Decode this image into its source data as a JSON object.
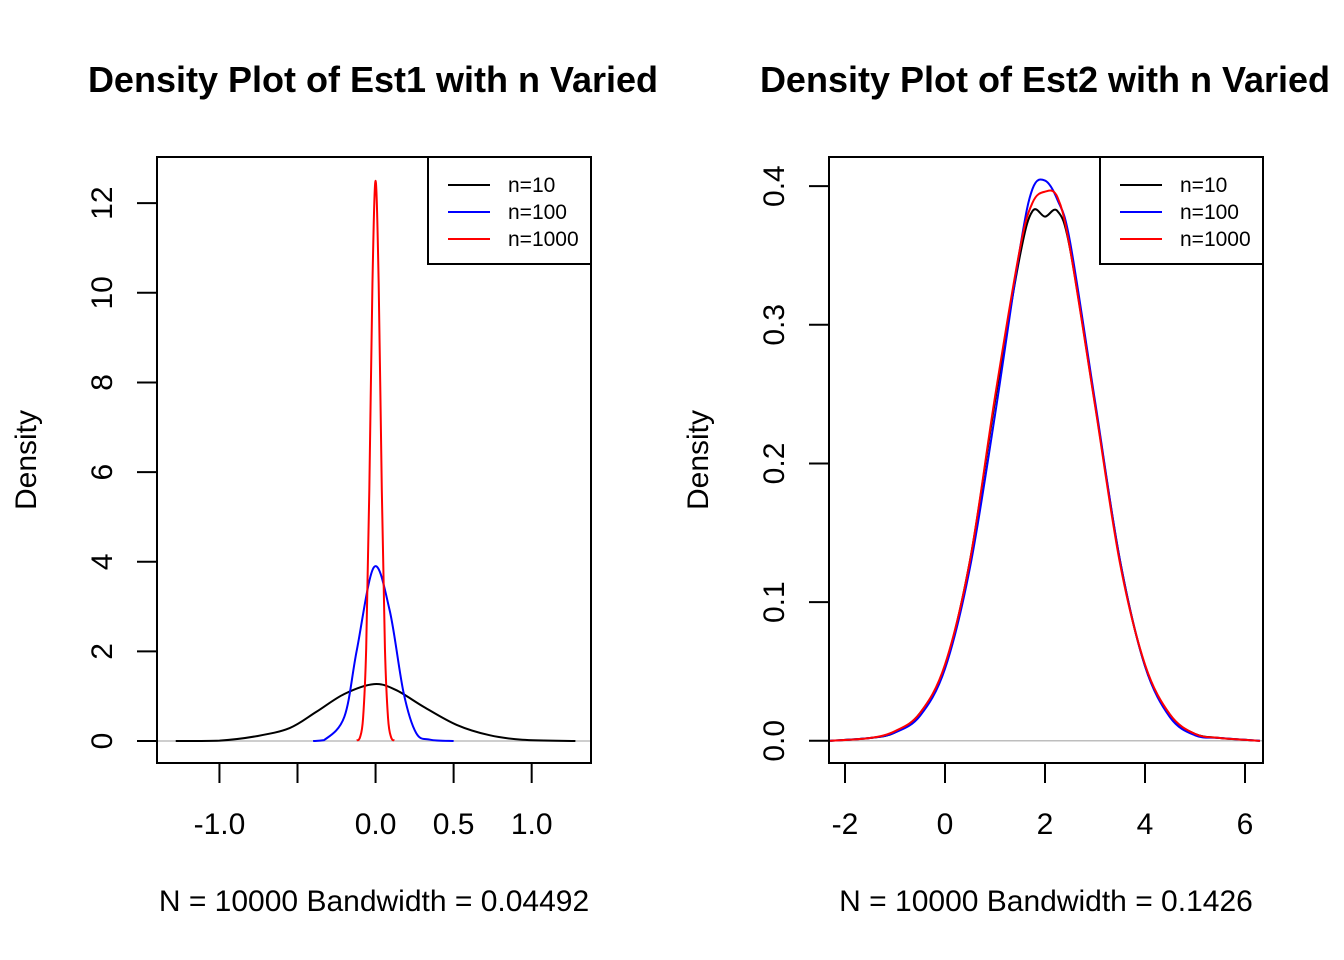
{
  "chart_data": [
    {
      "type": "line",
      "title": "Density Plot of Est1 with n Varied",
      "xlabel": "N = 10000   Bandwidth = 0.04492",
      "ylabel": "Density",
      "xlim": [
        -1.4,
        1.38
      ],
      "ylim": [
        -0.49,
        13.03
      ],
      "xticks": [
        -1.0,
        -0.5,
        0.0,
        0.5,
        1.0
      ],
      "xtick_labels": [
        "-1.0",
        "",
        "0.0",
        "0.5",
        "1.0"
      ],
      "yticks": [
        0,
        2,
        4,
        6,
        8,
        10,
        12
      ],
      "ytick_labels": [
        "0",
        "2",
        "4",
        "6",
        "8",
        "10",
        "12"
      ],
      "zero_line": true,
      "legend_position": "top-right",
      "series": [
        {
          "name": "n=10",
          "color": "#000000",
          "x": [
            -1.28,
            -1.0,
            -0.76,
            -0.55,
            -0.38,
            -0.2,
            -0.01,
            0.13,
            0.31,
            0.52,
            0.73,
            0.94,
            1.28
          ],
          "y": [
            0,
            0.01,
            0.11,
            0.29,
            0.65,
            1.05,
            1.27,
            1.14,
            0.76,
            0.36,
            0.13,
            0.03,
            0
          ]
        },
        {
          "name": "n=100",
          "color": "#0000ff",
          "x": [
            -0.4,
            -0.33,
            -0.2,
            -0.12,
            -0.01,
            0.09,
            0.18,
            0.26,
            0.35,
            0.5
          ],
          "y": [
            0,
            0.02,
            0.54,
            2.03,
            3.88,
            2.92,
            1.07,
            0.18,
            0.03,
            0
          ]
        },
        {
          "name": "n=1000",
          "color": "#ff0000",
          "x": [
            -0.12,
            -0.1,
            -0.08,
            -0.06,
            -0.04,
            -0.02,
            0,
            0.02,
            0.04,
            0.06,
            0.08,
            0.1,
            0.12
          ],
          "y": [
            0.01,
            0.08,
            0.51,
            2.07,
            5.6,
            10.2,
            12.5,
            10.2,
            5.6,
            2.07,
            0.51,
            0.08,
            0.01
          ]
        }
      ]
    },
    {
      "type": "line",
      "title": "Density Plot of Est2 with n Varied",
      "xlabel": "N = 10000   Bandwidth = 0.1426",
      "ylabel": "Density",
      "xlim": [
        -2.32,
        6.36
      ],
      "ylim": [
        -0.016,
        0.421
      ],
      "xticks": [
        -2,
        0,
        2,
        4,
        6
      ],
      "xtick_labels": [
        "-2",
        "0",
        "2",
        "4",
        "6"
      ],
      "yticks": [
        0.0,
        0.1,
        0.2,
        0.3,
        0.4
      ],
      "ytick_labels": [
        "0.0",
        "0.1",
        "0.2",
        "0.3",
        "0.4"
      ],
      "zero_line": true,
      "legend_position": "top-right",
      "series": [
        {
          "name": "n=10",
          "color": "#000000",
          "x": [
            -2.3,
            -1.5,
            -1,
            -0.5,
            0,
            0.5,
            1,
            1.5,
            1.75,
            2,
            2.25,
            2.5,
            3,
            3.5,
            4,
            4.5,
            5,
            5.5,
            6.3
          ],
          "y": [
            0,
            0.002,
            0.006,
            0.02,
            0.054,
            0.13,
            0.245,
            0.35,
            0.382,
            0.378,
            0.382,
            0.355,
            0.243,
            0.13,
            0.054,
            0.018,
            0.005,
            0.002,
            0
          ]
        },
        {
          "name": "n=100",
          "color": "#0000ff",
          "x": [
            -2.3,
            -1.5,
            -1,
            -0.5,
            0,
            0.5,
            1,
            1.5,
            1.75,
            2,
            2.25,
            2.5,
            3,
            3.5,
            4,
            4.5,
            5,
            5.5,
            6.3
          ],
          "y": [
            0,
            0.002,
            0.006,
            0.018,
            0.052,
            0.125,
            0.235,
            0.355,
            0.398,
            0.404,
            0.39,
            0.36,
            0.245,
            0.13,
            0.054,
            0.017,
            0.004,
            0.002,
            0
          ]
        },
        {
          "name": "n=1000",
          "color": "#ff0000",
          "x": [
            -2.3,
            -1.5,
            -1,
            -0.5,
            0,
            0.5,
            1,
            1.5,
            1.75,
            2,
            2.25,
            2.5,
            3,
            3.5,
            4,
            4.5,
            5,
            5.5,
            6.3
          ],
          "y": [
            0,
            0.002,
            0.007,
            0.02,
            0.055,
            0.13,
            0.248,
            0.355,
            0.388,
            0.396,
            0.392,
            0.355,
            0.242,
            0.128,
            0.055,
            0.019,
            0.005,
            0.002,
            0
          ]
        }
      ]
    }
  ]
}
